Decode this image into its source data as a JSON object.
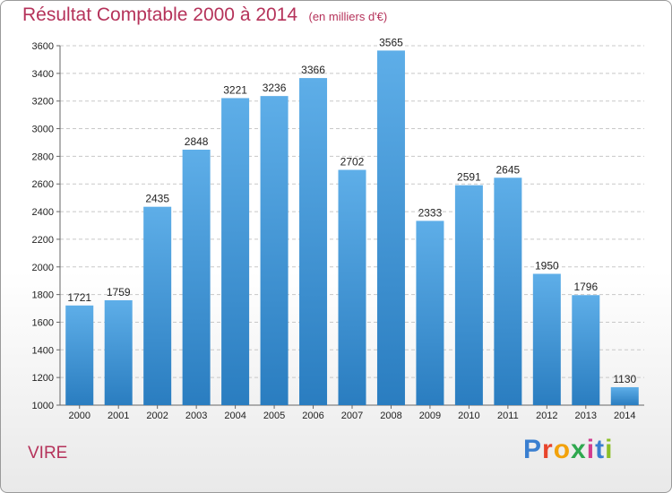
{
  "title": "Résultat Comptable 2000 à 2014",
  "subtitle": "(en milliers d'€)",
  "commune": "VIRE",
  "logo": {
    "text": "Proxiti",
    "colors": [
      "#3a7fd0",
      "#e8452c",
      "#f2a20c",
      "#2fa84f",
      "#d23c8f",
      "#3a7fd0",
      "#8cbf26"
    ]
  },
  "colors": {
    "accent": "#b5325a",
    "bar_top": "#5eaee8",
    "bar_bottom": "#2a7dc0",
    "grid": "#c8c8c8",
    "text": "#222222"
  },
  "chart_data": {
    "type": "bar",
    "title": "Résultat Comptable 2000 à 2014",
    "xlabel": "",
    "ylabel": "",
    "grid": true,
    "ylim": [
      1000,
      3600
    ],
    "yticks": [
      1000,
      1200,
      1400,
      1600,
      1800,
      2000,
      2200,
      2400,
      2600,
      2800,
      3000,
      3200,
      3400,
      3600
    ],
    "categories": [
      "2000",
      "2001",
      "2002",
      "2003",
      "2004",
      "2005",
      "2006",
      "2007",
      "2008",
      "2009",
      "2010",
      "2011",
      "2012",
      "2013",
      "2014"
    ],
    "values": [
      1721,
      1759,
      2435,
      2848,
      3221,
      3236,
      3366,
      2702,
      3565,
      2333,
      2591,
      2645,
      1950,
      1796,
      1130
    ]
  }
}
